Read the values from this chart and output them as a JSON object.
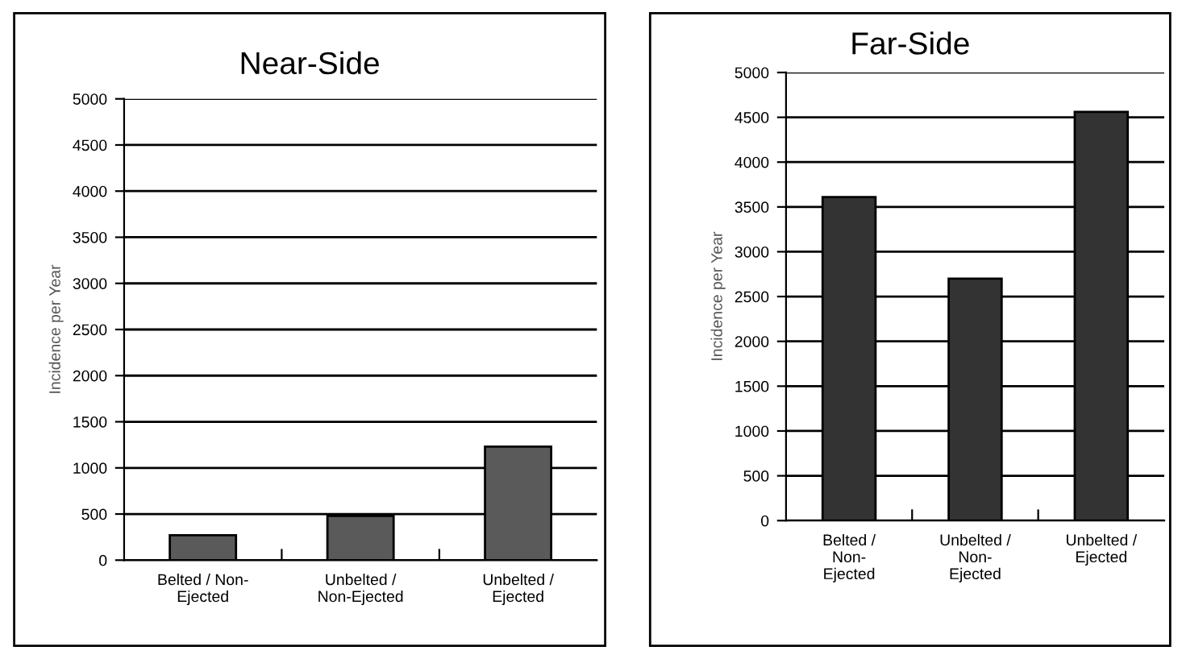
{
  "chart_data": [
    {
      "type": "bar",
      "title": "Near-Side",
      "ylabel": "Incidence per Year",
      "categories": [
        "Belted / Non-\nEjected",
        "Unbelted /\nNon-Ejected",
        "Unbelted /\nEjected"
      ],
      "values": [
        270,
        480,
        1230
      ],
      "color": "#5a5a5a",
      "ylim": [
        0,
        5000
      ],
      "yticks": [
        0,
        500,
        1000,
        1500,
        2000,
        2500,
        3000,
        3500,
        4000,
        4500,
        5000
      ],
      "grid": "y",
      "legend": false
    },
    {
      "type": "bar",
      "title": "Far-Side",
      "ylabel": "Incidence per Year",
      "categories": [
        "Belted /\nNon-\nEjected",
        "Unbelted /\nNon-\nEjected",
        "Unbelted /\nEjected"
      ],
      "values": [
        3610,
        2700,
        4560
      ],
      "color": "#333333",
      "ylim": [
        0,
        5000
      ],
      "yticks": [
        0,
        500,
        1000,
        1500,
        2000,
        2500,
        3000,
        3500,
        4000,
        4500,
        5000
      ],
      "grid": "y",
      "legend": false
    }
  ]
}
